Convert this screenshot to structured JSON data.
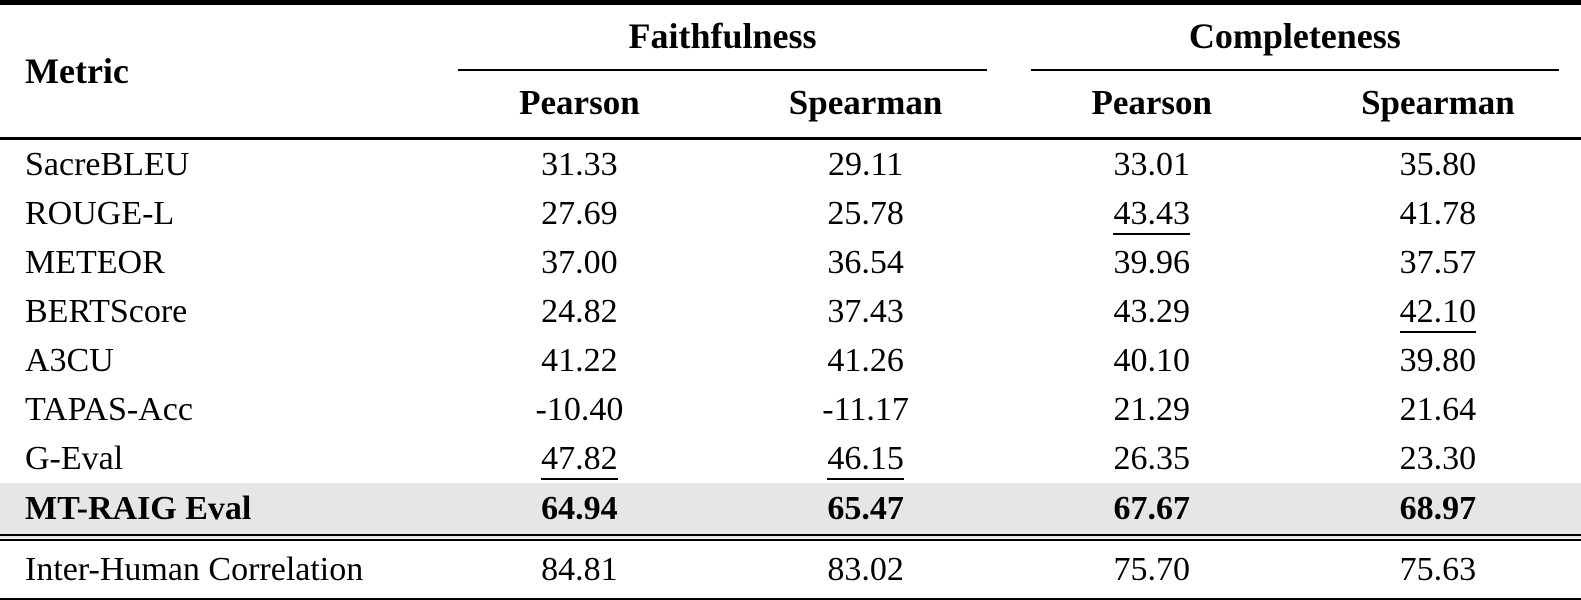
{
  "table": {
    "metric_header": "Metric",
    "groups": [
      {
        "label": "Faithfulness",
        "subcolumns": [
          "Pearson",
          "Spearman"
        ]
      },
      {
        "label": "Completeness",
        "subcolumns": [
          "Pearson",
          "Spearman"
        ]
      }
    ],
    "rows": [
      {
        "metric": "SacreBLEU",
        "values": [
          "31.33",
          "29.11",
          "33.01",
          "35.80"
        ],
        "underlined": [
          false,
          false,
          false,
          false
        ],
        "bold": false,
        "highlight": false
      },
      {
        "metric": "ROUGE-L",
        "values": [
          "27.69",
          "25.78",
          "43.43",
          "41.78"
        ],
        "underlined": [
          false,
          false,
          true,
          false
        ],
        "bold": false,
        "highlight": false
      },
      {
        "metric": "METEOR",
        "values": [
          "37.00",
          "36.54",
          "39.96",
          "37.57"
        ],
        "underlined": [
          false,
          false,
          false,
          false
        ],
        "bold": false,
        "highlight": false
      },
      {
        "metric": "BERTScore",
        "values": [
          "24.82",
          "37.43",
          "43.29",
          "42.10"
        ],
        "underlined": [
          false,
          false,
          false,
          true
        ],
        "bold": false,
        "highlight": false
      },
      {
        "metric": "A3CU",
        "values": [
          "41.22",
          "41.26",
          "40.10",
          "39.80"
        ],
        "underlined": [
          false,
          false,
          false,
          false
        ],
        "bold": false,
        "highlight": false
      },
      {
        "metric": "TAPAS-Acc",
        "values": [
          "-10.40",
          "-11.17",
          "21.29",
          "21.64"
        ],
        "underlined": [
          false,
          false,
          false,
          false
        ],
        "bold": false,
        "highlight": false
      },
      {
        "metric": "G-Eval",
        "values": [
          "47.82",
          "46.15",
          "26.35",
          "23.30"
        ],
        "underlined": [
          true,
          true,
          false,
          false
        ],
        "bold": false,
        "highlight": false
      },
      {
        "metric": "MT-RAIG Eval",
        "values": [
          "64.94",
          "65.47",
          "67.67",
          "68.97"
        ],
        "underlined": [
          false,
          false,
          false,
          false
        ],
        "bold": true,
        "highlight": true
      }
    ],
    "footer_row": {
      "metric": "Inter-Human Correlation",
      "values": [
        "84.81",
        "83.02",
        "75.70",
        "75.63"
      ]
    },
    "styles": {
      "highlight_color": "#e6e6e6",
      "text_color": "#000000",
      "background_color": "#ffffff",
      "rule_color": "#000000"
    }
  }
}
